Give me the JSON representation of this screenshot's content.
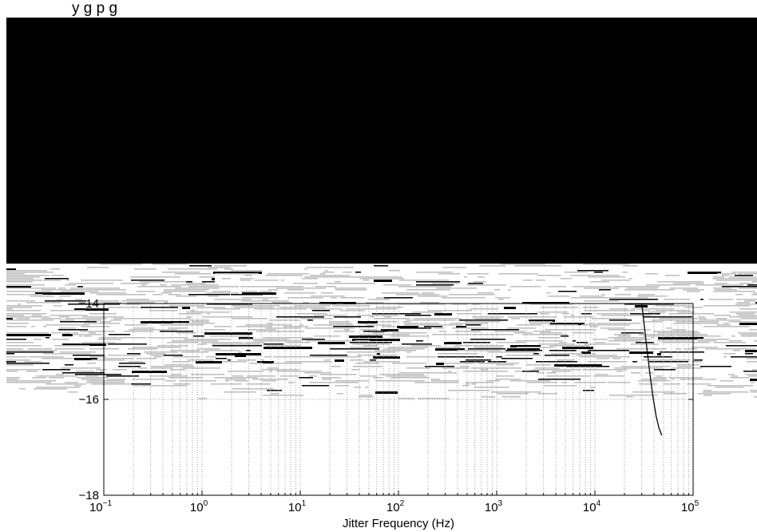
{
  "page": {
    "title_fragment": "y  g    p  g"
  },
  "colors": {
    "grid": "#8a8a8a",
    "axis": "#000000",
    "curve": "#000000",
    "occlusion": "#000000",
    "noise_light": "#bdbdbd",
    "noise_dark": "#000000"
  },
  "chart_data": {
    "type": "line",
    "xlabel": "Jitter Frequency (Hz)",
    "ylabel": "",
    "x_scale": "log",
    "xlim": [
      0.1,
      100000
    ],
    "ylim": [
      -18,
      -14
    ],
    "y_ticks": [
      -18,
      -16,
      -14
    ],
    "y_tick_labels": [
      "−18",
      "−16",
      "−14"
    ],
    "x_ticks": [
      {
        "value": 0.1,
        "base": "10",
        "exp": "−1"
      },
      {
        "value": 1,
        "base": "10",
        "exp": "0"
      },
      {
        "value": 10,
        "base": "10",
        "exp": "1"
      },
      {
        "value": 100,
        "base": "10",
        "exp": "2"
      },
      {
        "value": 1000,
        "base": "10",
        "exp": "3"
      },
      {
        "value": 10000,
        "base": "10",
        "exp": "4"
      },
      {
        "value": 100000,
        "base": "10",
        "exp": "5"
      }
    ],
    "grid": true,
    "series": [
      {
        "x": [
          30000,
          33000,
          36000,
          39000,
          42000,
          45000,
          48000
        ],
        "y": [
          -14.0,
          -14.75,
          -15.4,
          -15.95,
          -16.35,
          -16.6,
          -16.75
        ]
      }
    ]
  }
}
